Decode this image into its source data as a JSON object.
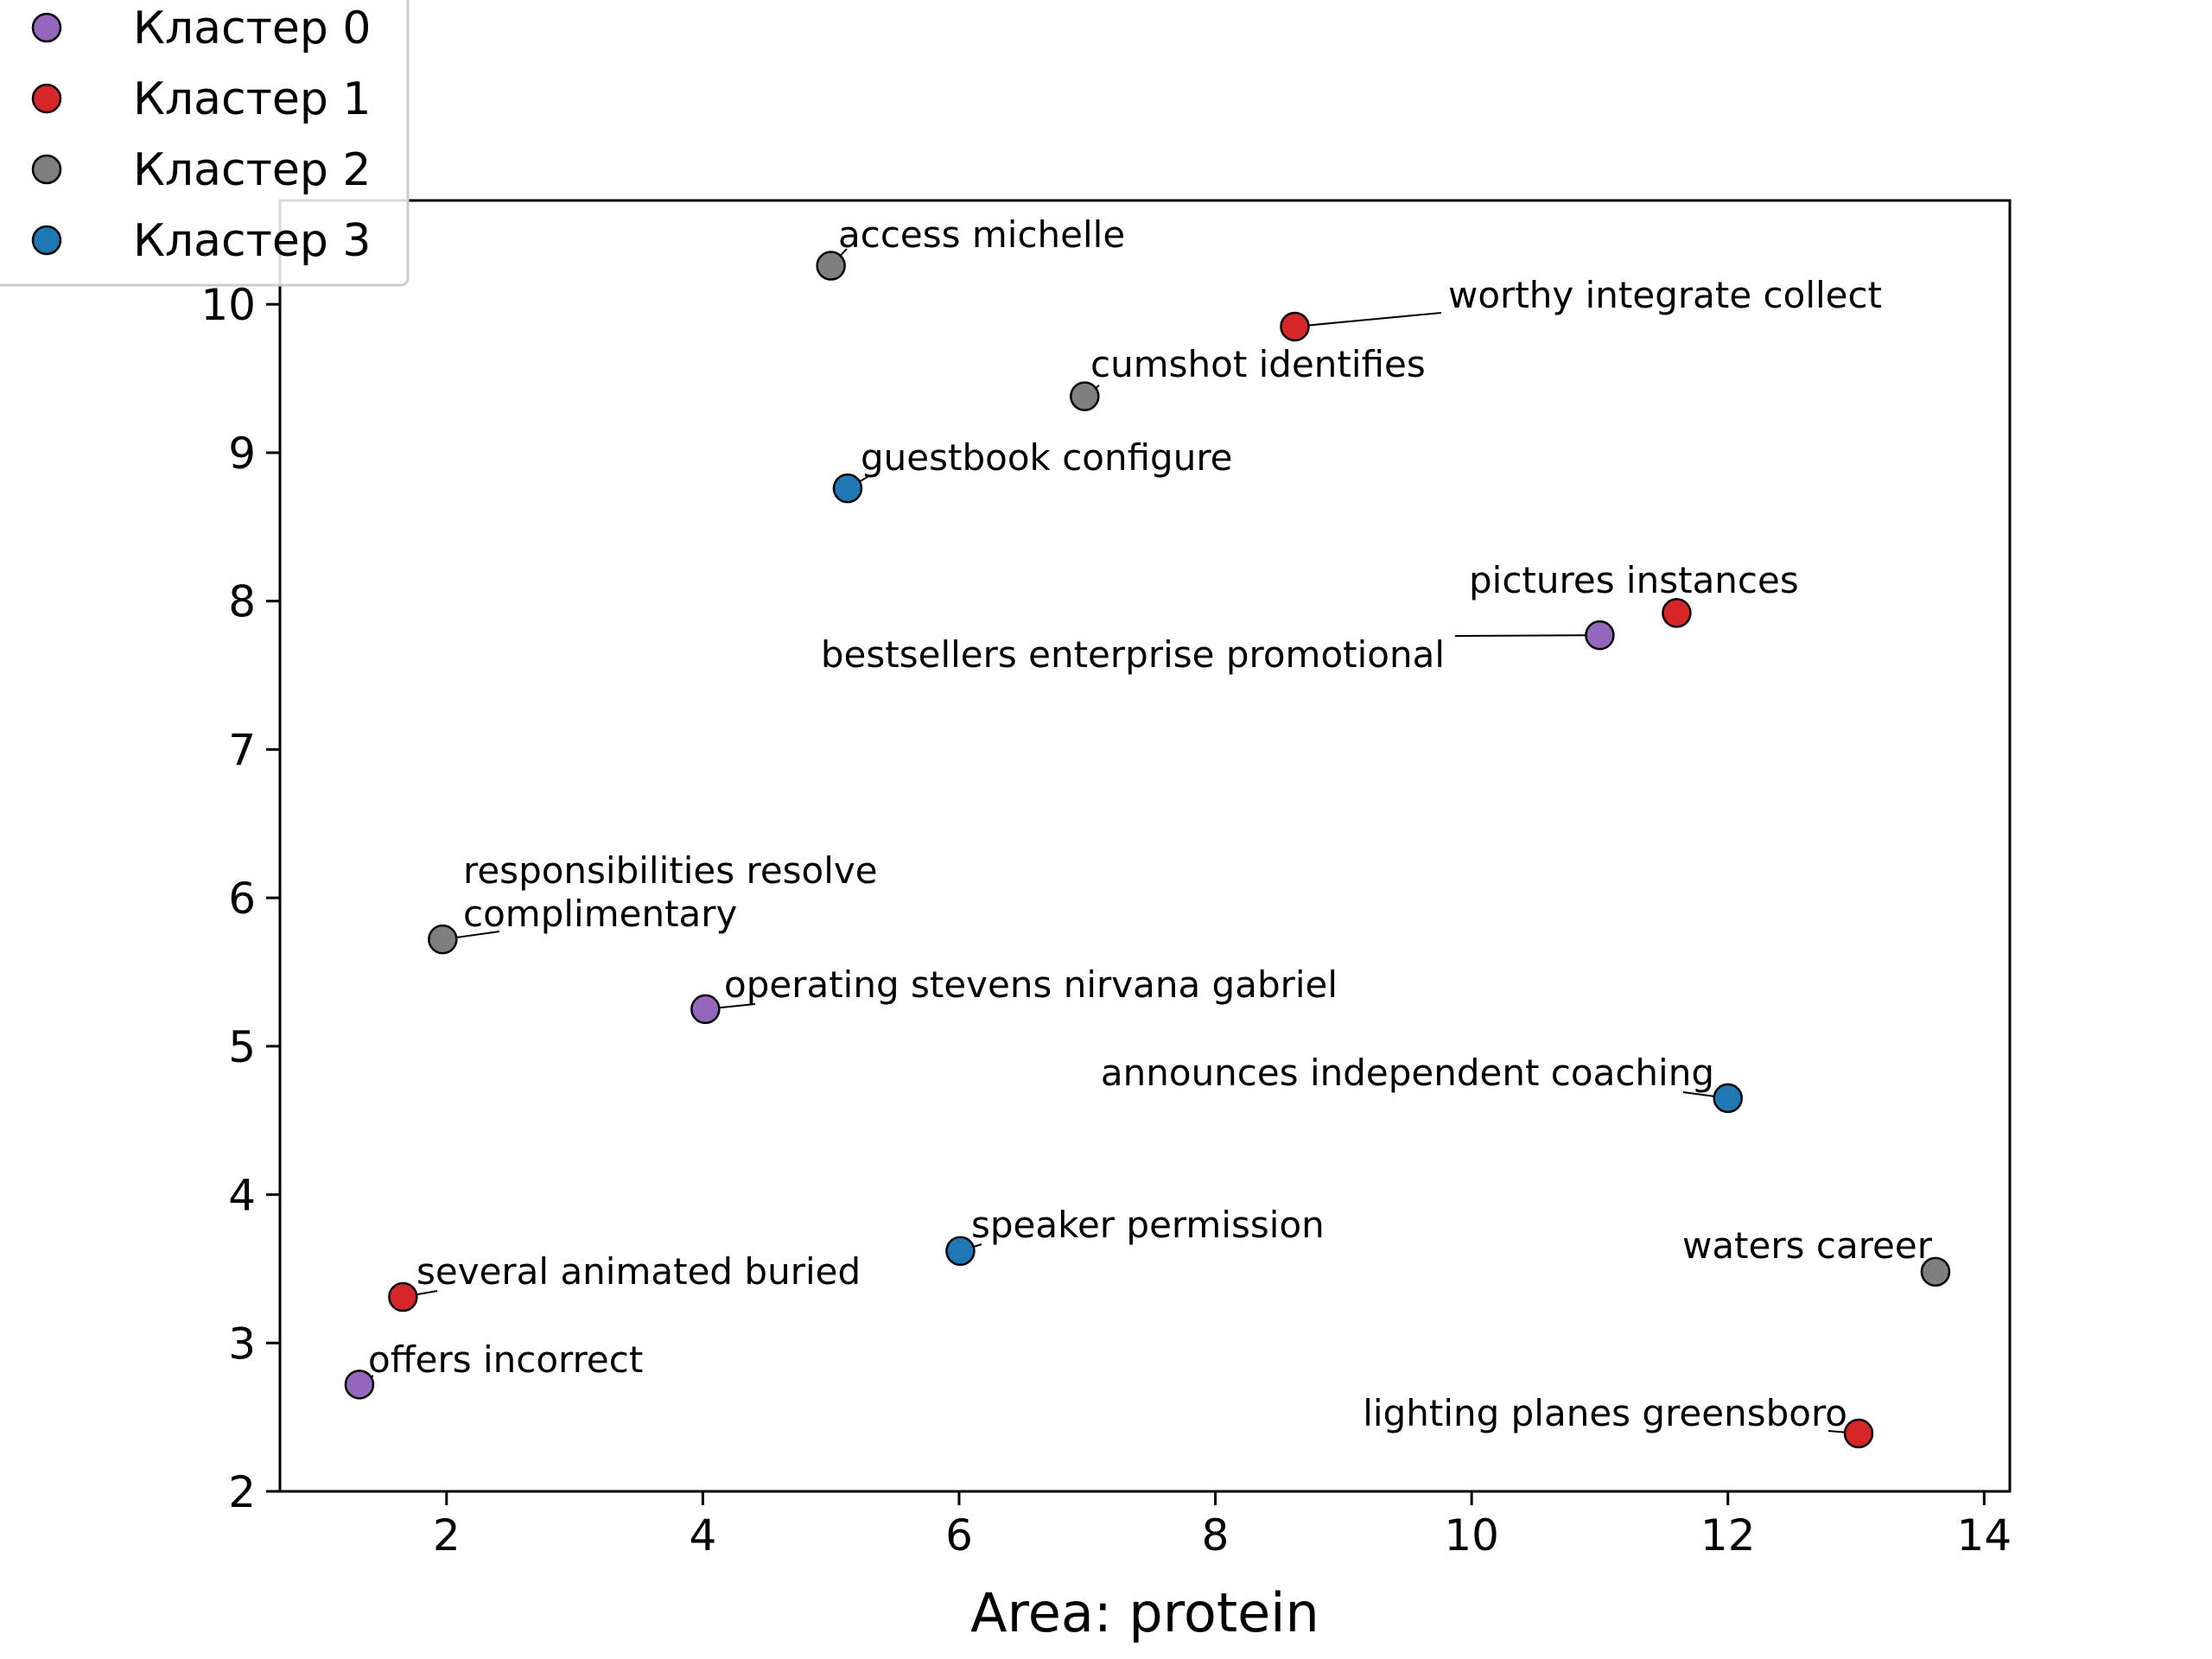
{
  "chart_data": {
    "type": "scatter",
    "title": "",
    "xlabel": "Area: protein",
    "ylabel": "",
    "xlim": [
      0.7,
      14.2
    ],
    "ylim": [
      2.0,
      10.7
    ],
    "xticks": [
      2,
      4,
      6,
      8,
      10,
      12,
      14
    ],
    "yticks": [
      2,
      3,
      4,
      5,
      6,
      7,
      8,
      9,
      10
    ],
    "grid": false,
    "legend_position": "top-left, outside",
    "series": [
      {
        "name": "Кластер 0",
        "color": "#9467bd",
        "points": [
          {
            "x": 11.0,
            "y": 7.77,
            "label": "bestsellers enterprise promotional"
          },
          {
            "x": 4.02,
            "y": 5.25,
            "label": "operating stevens nirvana gabriel"
          },
          {
            "x": 1.32,
            "y": 2.72,
            "label": "offers incorrect"
          }
        ]
      },
      {
        "name": "Кластер 1",
        "color": "#d62728",
        "points": [
          {
            "x": 8.62,
            "y": 9.85,
            "label": "worthy integrate collect"
          },
          {
            "x": 11.6,
            "y": 7.92,
            "label": "pictures instances"
          },
          {
            "x": 1.66,
            "y": 3.31,
            "label": "several animated buried"
          },
          {
            "x": 13.02,
            "y": 2.39,
            "label": "lighting planes greensboro"
          }
        ]
      },
      {
        "name": "Кластер 2",
        "color": "#7f7f7f",
        "points": [
          {
            "x": 5.0,
            "y": 10.26,
            "label": "access michelle"
          },
          {
            "x": 6.98,
            "y": 9.38,
            "label": "cumshot identifies"
          },
          {
            "x": 1.97,
            "y": 5.72,
            "label": [
              "responsibilities resolve",
              "complimentary"
            ]
          },
          {
            "x": 13.62,
            "y": 3.48,
            "label": "waters career"
          }
        ]
      },
      {
        "name": "Кластер 3",
        "color": "#1f77b4",
        "points": [
          {
            "x": 5.13,
            "y": 8.76,
            "label": "guestbook configure"
          },
          {
            "x": 12.0,
            "y": 4.65,
            "label": "announces independent coaching"
          },
          {
            "x": 6.01,
            "y": 3.62,
            "label": "speaker permission"
          }
        ]
      }
    ]
  }
}
